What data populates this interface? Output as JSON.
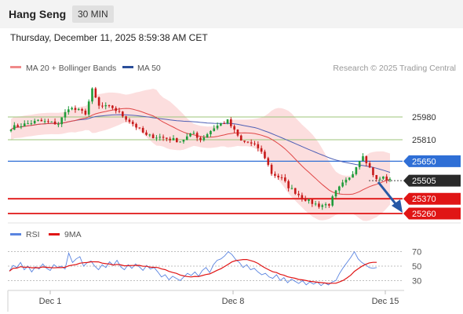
{
  "header": {
    "title": "Hang Seng",
    "timeframe": "30 MIN"
  },
  "timestamp": "Thursday, December 11, 2025 8:59:38 AM CET",
  "legend": {
    "ma20_bb_label": "MA 20 + Bollinger Bands",
    "ma50_label": "MA 50",
    "credit": "Research © 2025 Trading Central",
    "rsi_label": "RSI",
    "rsi_ma_label": "9MA"
  },
  "colors": {
    "bull": "#1f9c3a",
    "bear": "#c71a1a",
    "bb_fill": "#fbd3d3",
    "ma20": "#e04646",
    "ma50": "#4e5fb5",
    "support": "#e01515",
    "pivot": "#2f6fd6",
    "resistance": "#9cc47a",
    "last": "#2a2a2a",
    "arrow": "#2759a6",
    "rsi": "#5a84e0",
    "rsi_ma": "#e01515"
  },
  "chart_data": {
    "type": "candlestick",
    "title": "Hang Seng",
    "timeframe": "30 MIN",
    "x_ticks": [
      "Dec 1",
      "Dec 8",
      "Dec 15"
    ],
    "ylim": [
      25180,
      26220
    ],
    "levels": {
      "resistance": [
        25980,
        25810
      ],
      "pivot": 25650,
      "last": 25505,
      "support": [
        25370,
        25260
      ]
    },
    "level_labels": [
      "25980",
      "25810",
      "25650",
      "25505",
      "25370",
      "25260"
    ],
    "forecast": "down",
    "rsi": {
      "ylim": [
        10,
        90
      ],
      "ticks": [
        "70",
        "50",
        "30"
      ],
      "values": [
        43,
        51,
        48,
        55,
        45,
        50,
        42,
        49,
        46,
        53,
        47,
        44,
        52,
        48,
        50,
        46,
        68,
        55,
        60,
        63,
        50,
        55,
        57,
        50,
        45,
        52,
        48,
        56,
        51,
        58,
        49,
        45,
        52,
        47,
        53,
        49,
        44,
        51,
        46,
        48,
        42,
        35,
        38,
        31,
        36,
        33,
        30,
        35,
        40,
        37,
        42,
        36,
        44,
        48,
        41,
        52,
        58,
        60,
        64,
        70,
        66,
        59,
        55,
        48,
        52,
        45,
        47,
        42,
        38,
        40,
        35,
        33,
        38,
        30,
        34,
        27,
        32,
        29,
        26,
        30,
        24,
        28,
        25,
        28,
        23,
        27,
        24,
        28,
        30,
        40,
        48,
        55,
        62,
        70,
        60,
        55,
        52,
        48,
        47,
        48
      ]
    }
  }
}
